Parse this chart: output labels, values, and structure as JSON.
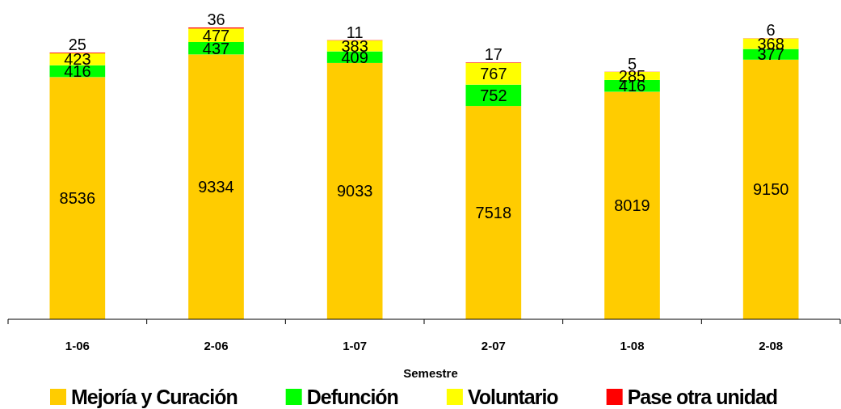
{
  "chart_data": {
    "type": "bar",
    "stacked": true,
    "xlabel": "Semestre",
    "categories": [
      "1-06",
      "2-06",
      "1-07",
      "2-07",
      "1-08",
      "2-08"
    ],
    "series": [
      {
        "name": "Mejoría y Curación",
        "color": "#ffcc00",
        "values": [
          8536,
          9334,
          9033,
          7518,
          8019,
          9150
        ]
      },
      {
        "name": "Defunción",
        "color": "#00ff00",
        "values": [
          416,
          437,
          409,
          752,
          416,
          377
        ]
      },
      {
        "name": "Voluntario",
        "color": "#ffff00",
        "values": [
          423,
          477,
          383,
          767,
          285,
          368
        ]
      },
      {
        "name": "Pase otra unidad",
        "color": "#ff0000",
        "values": [
          25,
          36,
          11,
          17,
          5,
          6
        ]
      }
    ],
    "data_labels": true,
    "legend": "bottom",
    "tick_labels": "x"
  }
}
